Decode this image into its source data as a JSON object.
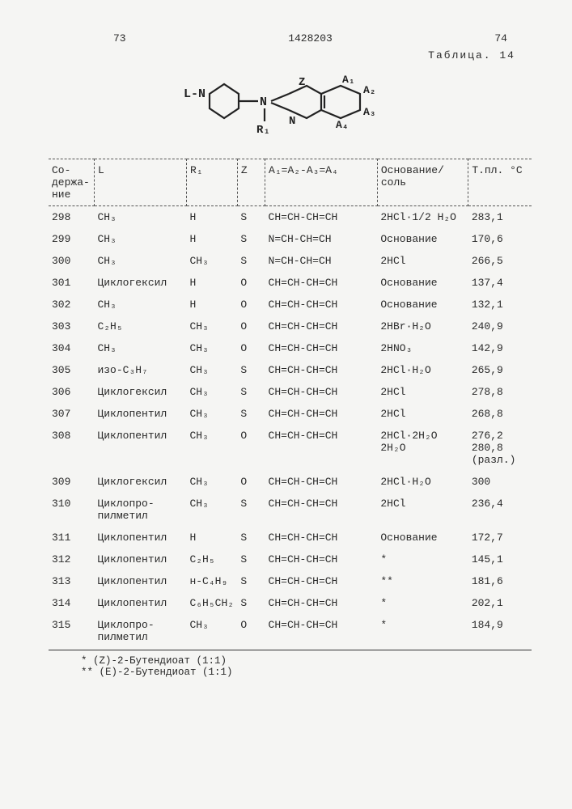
{
  "header": {
    "page_left": "73",
    "doc_number": "1428203",
    "page_right": "74",
    "table_title": "Таблица. 14"
  },
  "columns": {
    "c1": "Со-\nдержа-\nние",
    "c2": "L",
    "c3": "R₁",
    "c4": "Z",
    "c5": "A₁=A₂-A₃=A₄",
    "c6": "Основание/\nсоль",
    "c7": "T.пл. °C"
  },
  "rows": [
    {
      "n": "298",
      "l": "CH₃",
      "r": "H",
      "z": "S",
      "a": "CH=CH-CH=CH",
      "b": "2HCl·1/2 H₂O",
      "mp": "283,1"
    },
    {
      "n": "299",
      "l": "CH₃",
      "r": "H",
      "z": "S",
      "a": "N=CH-CH=CH",
      "b": "Основание",
      "mp": "170,6"
    },
    {
      "n": "300",
      "l": "CH₃",
      "r": "CH₃",
      "z": "S",
      "a": "N=CH-CH=CH",
      "b": "2HCl",
      "mp": "266,5"
    },
    {
      "n": "301",
      "l": "Циклогексил",
      "r": "H",
      "z": "O",
      "a": "CH=CH-CH=CH",
      "b": "Основание",
      "mp": "137,4"
    },
    {
      "n": "302",
      "l": "CH₃",
      "r": "H",
      "z": "O",
      "a": "CH=CH-CH=CH",
      "b": "Основание",
      "mp": "132,1"
    },
    {
      "n": "303",
      "l": "C₂H₅",
      "r": "CH₃",
      "z": "O",
      "a": "CH=CH-CH=CH",
      "b": "2HBr·H₂O",
      "mp": "240,9"
    },
    {
      "n": "304",
      "l": "CH₃",
      "r": "CH₃",
      "z": "O",
      "a": "CH=CH-CH=CH",
      "b": "2HNO₃",
      "mp": "142,9"
    },
    {
      "n": "305",
      "l": "изо-C₃H₇",
      "r": "CH₃",
      "z": "S",
      "a": "CH=CH-CH=CH",
      "b": "2HCl·H₂O",
      "mp": "265,9"
    },
    {
      "n": "306",
      "l": "Циклогексил",
      "r": "CH₃",
      "z": "S",
      "a": "CH=CH-CH=CH",
      "b": "2HCl",
      "mp": "278,8"
    },
    {
      "n": "307",
      "l": "Циклопентил",
      "r": "CH₃",
      "z": "S",
      "a": "CH=CH-CH=CH",
      "b": "2HCl",
      "mp": "268,8"
    },
    {
      "n": "308",
      "l": "Циклопентил",
      "r": "CH₃",
      "z": "O",
      "a": "CH=CH-CH=CH",
      "b": "2HCl·2H₂O\n2H₂O",
      "mp": "276,2\n280,8\n(разл.)"
    },
    {
      "n": "309",
      "l": "Циклогексил",
      "r": "CH₃",
      "z": "O",
      "a": "CH=CH-CH=CH",
      "b": "2HCl·H₂O",
      "mp": "300"
    },
    {
      "n": "310",
      "l": "Циклопро-\nпилметил",
      "r": "CH₃",
      "z": "S",
      "a": "CH=CH-CH=CH",
      "b": "2HCl",
      "mp": "236,4"
    },
    {
      "n": "311",
      "l": "Циклопентил",
      "r": "H",
      "z": "S",
      "a": "CH=CH-CH=CH",
      "b": "Основание",
      "mp": "172,7"
    },
    {
      "n": "312",
      "l": "Циклопентил",
      "r": "C₂H₅",
      "z": "S",
      "a": "CH=CH-CH=CH",
      "b": "*",
      "mp": "145,1"
    },
    {
      "n": "313",
      "l": "Циклопентил",
      "r": "н-C₄H₉",
      "z": "S",
      "a": "CH=CH-CH=CH",
      "b": "**",
      "mp": "181,6"
    },
    {
      "n": "314",
      "l": "Циклопентил",
      "r": "C₆H₅CH₂",
      "z": "S",
      "a": "CH=CH-CH=CH",
      "b": "*",
      "mp": "202,1"
    },
    {
      "n": "315",
      "l": "Циклопро-\nпилметил",
      "r": "CH₃",
      "z": "O",
      "a": "CH=CH-CH=CH",
      "b": "*",
      "mp": "184,9"
    }
  ],
  "footnotes": {
    "f1": "* (Z)-2-Бутендиоат (1:1)",
    "f2": "** (E)-2-Бутендиоат (1:1)"
  },
  "style": {
    "bg": "#f5f5f3",
    "fg": "#2a2a2a",
    "font": "Courier New",
    "fontsize_pt": 10,
    "dashed_border": "#555",
    "solid_border": "#333"
  }
}
